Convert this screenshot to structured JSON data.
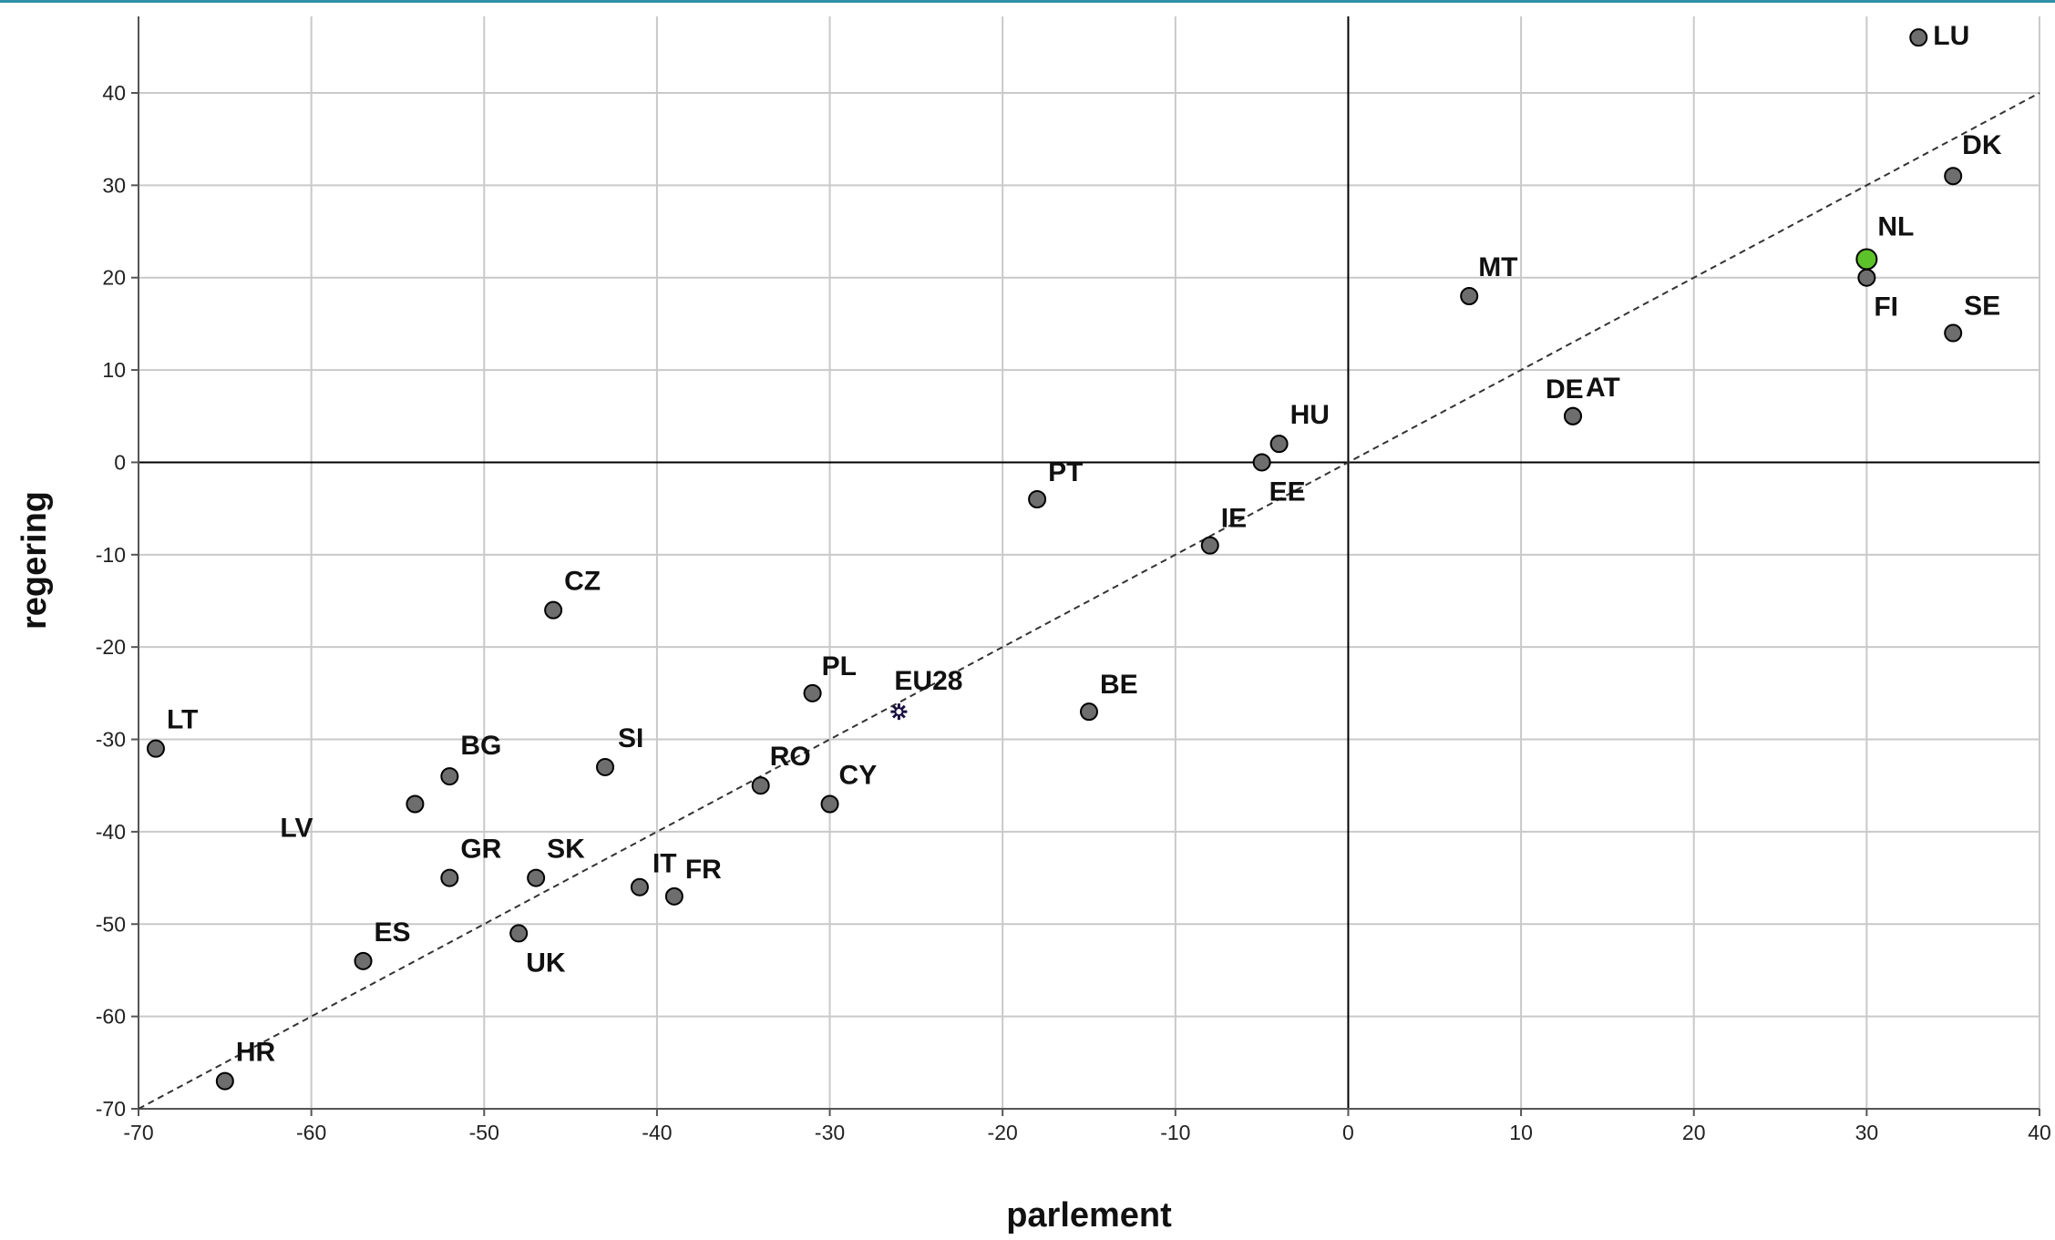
{
  "chart_data": {
    "type": "scatter",
    "xlabel": "parlement",
    "ylabel": "regering",
    "xlim": [
      -70,
      40
    ],
    "ylim": [
      -70,
      47
    ],
    "xticks": [
      -70,
      -60,
      -50,
      -40,
      -30,
      -20,
      -10,
      0,
      10,
      20,
      30,
      40
    ],
    "yticks": [
      -70,
      -60,
      -50,
      -40,
      -30,
      -20,
      -10,
      0,
      10,
      20,
      30,
      40
    ],
    "grid": true,
    "reference_line": "y = x",
    "colors": {
      "point": "#6e6e6e",
      "highlight": "#5cc22a",
      "marker": "#1a1040",
      "grid": "#c9c9c9"
    },
    "points": [
      {
        "label": "LU",
        "x": 33,
        "y": 46
      },
      {
        "label": "DK",
        "x": 35,
        "y": 31
      },
      {
        "label": "NL",
        "x": 30,
        "y": 22,
        "highlight": true
      },
      {
        "label": "FI",
        "x": 30,
        "y": 20
      },
      {
        "label": "SE",
        "x": 35,
        "y": 14
      },
      {
        "label": "MT",
        "x": 7,
        "y": 18
      },
      {
        "label": "DE",
        "x": 13,
        "y": 5
      },
      {
        "label": "AT",
        "x": 13,
        "y": 5
      },
      {
        "label": "HU",
        "x": -4,
        "y": 2
      },
      {
        "label": "EE",
        "x": -5,
        "y": 0
      },
      {
        "label": "IE",
        "x": -8,
        "y": -9
      },
      {
        "label": "PT",
        "x": -18,
        "y": -4
      },
      {
        "label": "BE",
        "x": -15,
        "y": -27
      },
      {
        "label": "EU28",
        "x": -26,
        "y": -27,
        "marker": "star"
      },
      {
        "label": "PL",
        "x": -31,
        "y": -25
      },
      {
        "label": "CY",
        "x": -30,
        "y": -37
      },
      {
        "label": "RO",
        "x": -34,
        "y": -35
      },
      {
        "label": "CZ",
        "x": -46,
        "y": -16
      },
      {
        "label": "SI",
        "x": -43,
        "y": -33
      },
      {
        "label": "BG",
        "x": -52,
        "y": -34
      },
      {
        "label": "LV",
        "x": -54,
        "y": -37
      },
      {
        "label": "LT",
        "x": -69,
        "y": -31
      },
      {
        "label": "GR",
        "x": -52,
        "y": -45
      },
      {
        "label": "SK",
        "x": -47,
        "y": -45
      },
      {
        "label": "IT",
        "x": -41,
        "y": -46
      },
      {
        "label": "FR",
        "x": -39,
        "y": -47
      },
      {
        "label": "UK",
        "x": -48,
        "y": -51
      },
      {
        "label": "ES",
        "x": -57,
        "y": -54
      },
      {
        "label": "HR",
        "x": -65,
        "y": -67
      }
    ]
  }
}
